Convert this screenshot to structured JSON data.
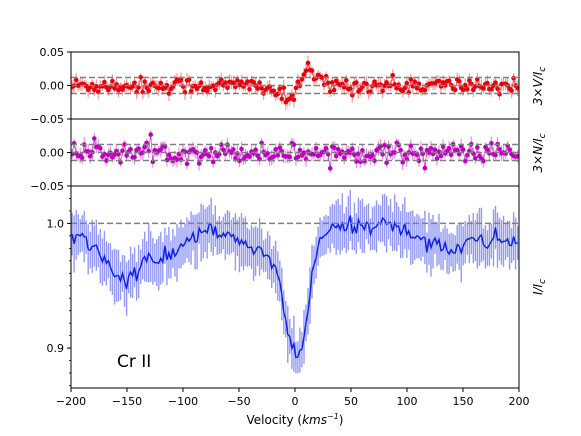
{
  "chart_data": {
    "type": "line",
    "xlabel_prefix": "Velocity (",
    "xlabel_unit": "kms",
    "xlabel_exp": "−1",
    "xlabel_suffix": ")",
    "xlim": [
      -200,
      200
    ],
    "x_ticks": [
      "−200",
      "−150",
      "−100",
      "−50",
      "0",
      "50",
      "100",
      "150",
      "200"
    ],
    "x_tick_values": [
      -200,
      -150,
      -100,
      -50,
      0,
      50,
      100,
      150,
      200
    ],
    "annotation": "Cr II",
    "panels": [
      {
        "id": "V",
        "ylabel": "3×V/I",
        "ylabel_sub": "c",
        "ylim": [
          -0.05,
          0.05
        ],
        "y_ticks": [
          "0.05",
          "0.00",
          "−0.05"
        ],
        "y_tick_values": [
          0.05,
          0.0,
          -0.05
        ],
        "ref_lines": [
          0.0,
          0.012,
          -0.012
        ],
        "color": "#e8000b",
        "error_color": "#f28a8a",
        "noise": 0.006,
        "error": 0.009,
        "signal_x": [
          -200,
          -30,
          -18,
          -8,
          0,
          4,
          10,
          18,
          26,
          34,
          200
        ],
        "signal_y": [
          0.0,
          0.0,
          -0.008,
          -0.022,
          -0.015,
          0.006,
          0.021,
          0.014,
          0.003,
          0.0,
          0.0
        ]
      },
      {
        "id": "N",
        "ylabel": "3×N/I",
        "ylabel_sub": "c",
        "ylim": [
          -0.05,
          0.05
        ],
        "y_ticks": [
          "0.00",
          "−0.05"
        ],
        "y_tick_values": [
          0.0,
          -0.05
        ],
        "ref_lines": [
          0.0,
          0.012,
          -0.012
        ],
        "color": "#bf00bf",
        "error_color": "#df7fdf",
        "noise": 0.007,
        "error": 0.009,
        "signal_x": [
          -200,
          200
        ],
        "signal_y": [
          0.0,
          0.0
        ]
      },
      {
        "id": "I",
        "ylabel": "I/I",
        "ylabel_sub": "c",
        "ylim": [
          0.868,
          1.03
        ],
        "y_ticks": [
          "1.0",
          "0.9"
        ],
        "y_tick_values": [
          1.0,
          0.9
        ],
        "ref_lines": [
          1.0
        ],
        "color": "#0a1ee6",
        "error_color": "#7f88f2",
        "noise": 0.0035,
        "error": 0.018,
        "signal_x": [
          -200,
          -185,
          -170,
          -160,
          -150,
          -140,
          -130,
          -120,
          -110,
          -100,
          -90,
          -80,
          -70,
          -60,
          -50,
          -40,
          -30,
          -20,
          -15,
          -10,
          -5,
          0,
          5,
          10,
          15,
          20,
          25,
          30,
          40,
          50,
          60,
          70,
          80,
          90,
          100,
          110,
          120,
          130,
          140,
          150,
          160,
          170,
          180,
          190,
          200
        ],
        "signal_y": [
          0.988,
          0.985,
          0.972,
          0.958,
          0.953,
          0.962,
          0.975,
          0.968,
          0.975,
          0.982,
          0.99,
          0.995,
          0.992,
          0.989,
          0.985,
          0.982,
          0.977,
          0.97,
          0.955,
          0.93,
          0.905,
          0.894,
          0.897,
          0.918,
          0.955,
          0.982,
          0.99,
          0.994,
          0.996,
          0.998,
          0.999,
          0.999,
          1.0,
          0.997,
          0.993,
          0.989,
          0.986,
          0.983,
          0.979,
          0.983,
          0.986,
          0.983,
          0.989,
          0.986,
          0.986
        ]
      }
    ]
  }
}
